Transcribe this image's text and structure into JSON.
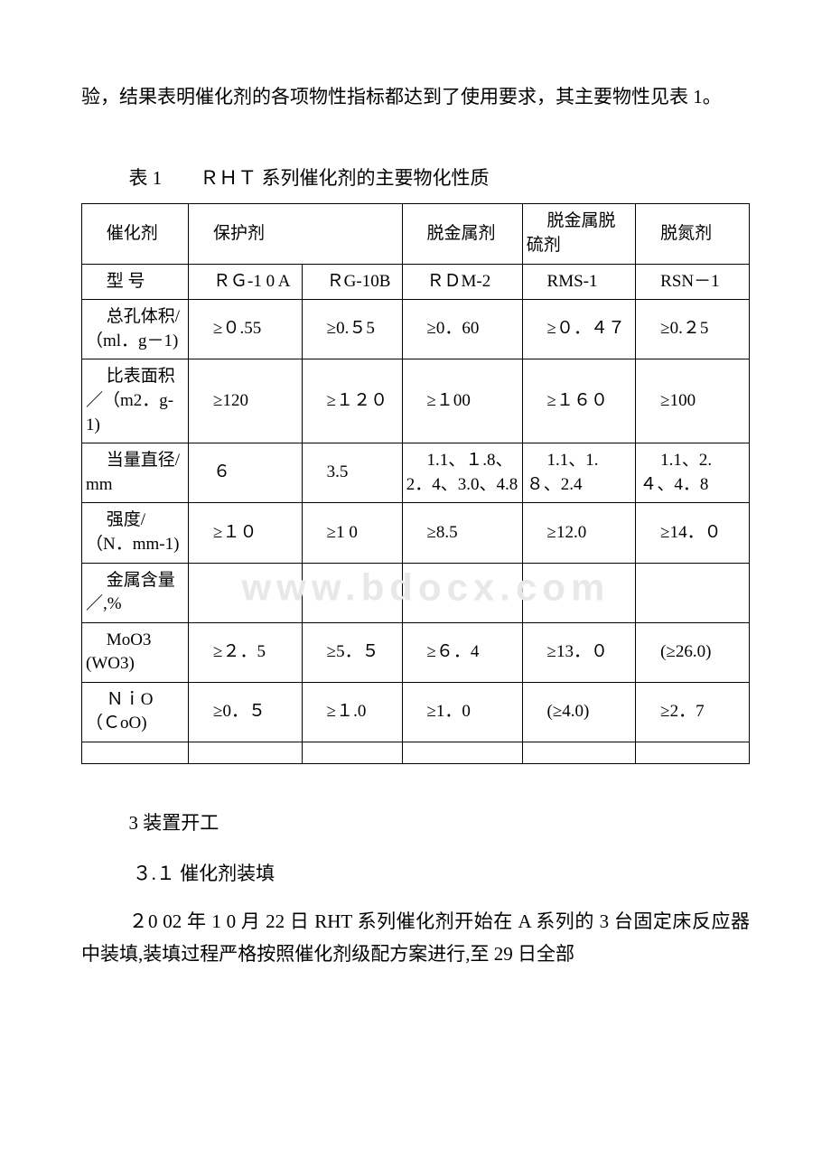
{
  "intro_paragraph": "验，结果表明催化剂的各项物性指标都达到了使用要求，其主要物性见表 1。",
  "table_caption": "表 1　　ＲＨＴ 系列催化剂的主要物化性质",
  "table": {
    "columns": [
      "催化剂",
      "保护剂",
      "",
      "脱金属剂",
      "脱金属脱硫剂",
      "脱氮剂"
    ],
    "rows": [
      [
        "型 号",
        "ＲＧ-1 0 A",
        "ＲG-10B",
        "ＲＤM-2",
        "RMS-1",
        "RSN－1"
      ],
      [
        "总孔体积/（ml．g－1)",
        "≥０.55",
        "≥0.５5",
        "≥0．60",
        "≥０．４７",
        "≥0.２5"
      ],
      [
        "比表面积／（m2．g-1)",
        "≥120",
        "≥１２０",
        "≥１00",
        "≥１６０",
        "≥100"
      ],
      [
        "当量直径/mm",
        "６",
        "3.5",
        "1.1、１.8、2．4、3.0、4.8",
        "1.1、1.８、2.4",
        "1.1、2.４、4．8"
      ],
      [
        "强度/（N．mm-1)",
        "≥１０",
        "≥1 0",
        "≥8.5",
        "≥12.0",
        "≥14．０"
      ],
      [
        "金属含量／,%",
        "",
        "",
        "",
        "",
        ""
      ],
      [
        "MoO3　(WO3)",
        "≥２．5",
        "≥5．５",
        "≥６．4",
        "≥13．０",
        "(≥26.0)"
      ],
      [
        "ＮｉO（ＣoO)",
        "≥0．５",
        "≥１.0",
        "≥1．0",
        "(≥4.0)",
        "≥2．7"
      ]
    ]
  },
  "watermark_text": "www.bdocx.com",
  "section3_title": "3 装置开工",
  "section3_1_title": "３.１ 催化剂装填",
  "section3_body": "２0 02 年 1 0 月 22 日 RHT 系列催化剂开始在 A 系列的 3 台固定床反应器中装填,装填过程严格按照催化剂级配方案进行,至 29 日全部"
}
